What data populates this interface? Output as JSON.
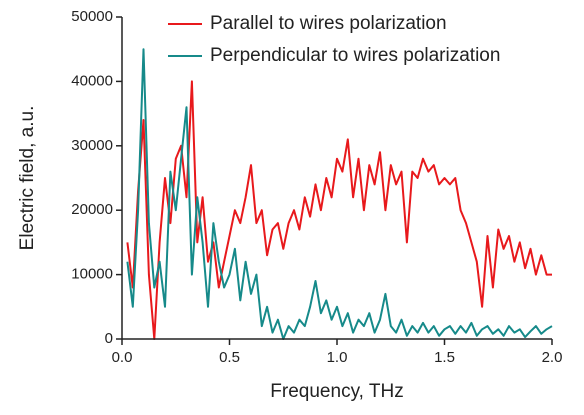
{
  "chart_data": {
    "type": "line",
    "xlabel": "Frequency, THz",
    "ylabel": "Electric field, a.u.",
    "xlim": [
      0,
      2
    ],
    "ylim": [
      0,
      50000
    ],
    "xticks": [
      {
        "value": 0,
        "label": "0.0"
      },
      0.5,
      {
        "value": 1,
        "label": "1.0"
      },
      1.5,
      {
        "value": 2,
        "label": "2.0"
      }
    ],
    "yticks": [
      0,
      10000,
      20000,
      30000,
      40000,
      50000
    ],
    "legend": "upper right",
    "x": [
      0.025,
      0.05,
      0.075,
      0.1,
      0.125,
      0.15,
      0.175,
      0.2,
      0.225,
      0.25,
      0.275,
      0.3,
      0.325,
      0.35,
      0.375,
      0.4,
      0.425,
      0.45,
      0.475,
      0.5,
      0.525,
      0.55,
      0.575,
      0.6,
      0.625,
      0.65,
      0.675,
      0.7,
      0.725,
      0.75,
      0.775,
      0.8,
      0.825,
      0.85,
      0.875,
      0.9,
      0.925,
      0.95,
      0.975,
      1.0,
      1.025,
      1.05,
      1.075,
      1.1,
      1.125,
      1.15,
      1.175,
      1.2,
      1.225,
      1.25,
      1.275,
      1.3,
      1.325,
      1.35,
      1.375,
      1.4,
      1.425,
      1.45,
      1.475,
      1.5,
      1.525,
      1.55,
      1.575,
      1.6,
      1.625,
      1.65,
      1.675,
      1.7,
      1.725,
      1.75,
      1.775,
      1.8,
      1.825,
      1.85,
      1.875,
      1.9,
      1.925,
      1.95,
      1.975,
      2.0
    ],
    "series": [
      {
        "name": "Parallel to wires polarization",
        "color": "#e8191c",
        "values": [
          15000,
          8000,
          23000,
          34000,
          10000,
          0,
          15000,
          25000,
          18000,
          28000,
          30000,
          22000,
          40000,
          15000,
          22000,
          12000,
          15000,
          8000,
          12000,
          16000,
          20000,
          18000,
          22000,
          27000,
          18000,
          20000,
          13000,
          17000,
          18000,
          14000,
          18000,
          20000,
          17000,
          22000,
          19000,
          24000,
          20000,
          25000,
          22000,
          28000,
          26000,
          31000,
          22000,
          28000,
          20000,
          27000,
          24000,
          29000,
          20000,
          27000,
          24000,
          26000,
          15000,
          26000,
          25000,
          28000,
          26000,
          27000,
          24000,
          25000,
          24000,
          25000,
          20000,
          18000,
          15000,
          12000,
          5000,
          16000,
          8000,
          17000,
          14000,
          16000,
          12000,
          15000,
          11000,
          14000,
          10000,
          13000,
          10000,
          10000
        ]
      },
      {
        "name": "Perpendicular to wires polarization",
        "color": "#168a8a",
        "values": [
          12000,
          5000,
          20000,
          45000,
          18000,
          8000,
          12000,
          5000,
          26000,
          20000,
          28000,
          36000,
          10000,
          22000,
          15000,
          5000,
          18000,
          12000,
          8000,
          10000,
          14000,
          6000,
          12000,
          7000,
          10000,
          2000,
          5000,
          1000,
          3000,
          0,
          2000,
          1000,
          3000,
          2000,
          5000,
          9000,
          4000,
          6000,
          3000,
          5000,
          2000,
          4000,
          1000,
          3000,
          2000,
          4000,
          1000,
          3000,
          7000,
          2000,
          1000,
          3000,
          500,
          2000,
          1000,
          2500,
          1000,
          2000,
          500,
          1500,
          2000,
          800,
          2000,
          1000,
          2500,
          500,
          1500,
          2000,
          800,
          1500,
          500,
          2000,
          1000,
          1500,
          300,
          1200,
          2000,
          800,
          1500,
          2000
        ]
      }
    ]
  }
}
